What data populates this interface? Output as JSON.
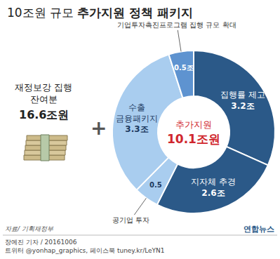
{
  "chart_data": {
    "type": "pie",
    "title": "10조원 규모 추가지원 정책 패키지",
    "categories": [
      "집행률 제고",
      "지자체 추경",
      "공기업 투자",
      "수출 금융패키지",
      "기업투자촉진프로그램 집행 규모 확대"
    ],
    "values": [
      3.2,
      2.6,
      0.5,
      3.3,
      0.5
    ],
    "value_labels": [
      "3.2조",
      "2.6조",
      "0.5",
      "3.3조",
      "0.5조"
    ],
    "colors": [
      "#2b5988",
      "#2b5988",
      "#a9cdef",
      "#a9cdef",
      "#5e93d0"
    ],
    "data_labels": true,
    "total": {
      "label": "추가지원",
      "value": 10.1,
      "value_label": "10.1조원"
    },
    "base": {
      "label": "재정보강 집행 잔여분",
      "value_label": "16.6조원"
    },
    "operator": "+",
    "source": "자료/ 기획재정부",
    "credits": [
      "장예진 기자 / 20161006",
      "트위터 @yonhap_graphics, 페이스북 tuney.kr/LeYN1"
    ],
    "logo": "연합뉴스"
  }
}
